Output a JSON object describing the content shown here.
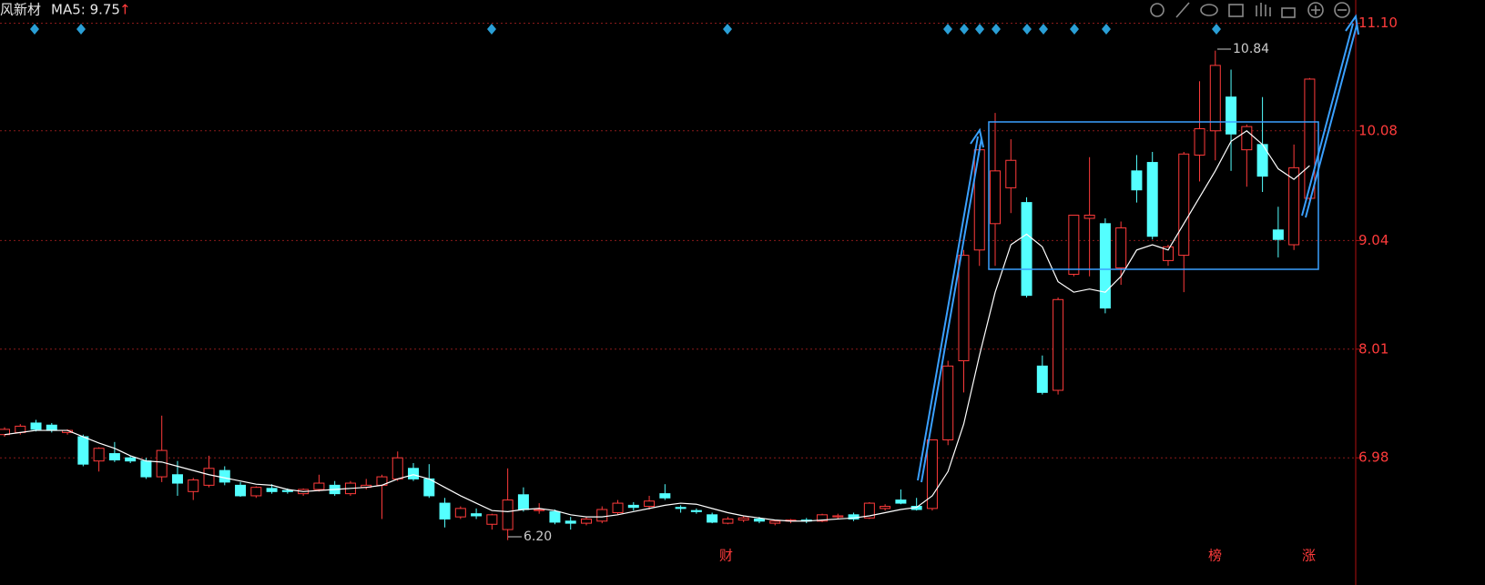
{
  "chart_data": {
    "type": "candlestick",
    "title": "风新材",
    "ma_label": "MA5: 9.75",
    "ma_arrow": "↑",
    "annotations": [
      "10.84",
      "6.20"
    ],
    "event_labels": [
      "财",
      "榜",
      "涨"
    ],
    "ylim": [
      5.99,
      11.32
    ],
    "yticks": [
      {
        "value": 11.1,
        "label": "11.10"
      },
      10.08,
      9.04,
      8.01,
      6.98
    ],
    "grid": true,
    "up_color": "#ff3b3b",
    "down_color": "#54ffff",
    "ma_color": "#ffffff",
    "open": [
      7.2,
      7.22,
      7.31,
      7.29,
      7.22,
      7.18,
      6.95,
      7.02,
      6.98,
      6.95,
      6.8,
      6.82,
      6.66,
      6.72,
      6.86,
      6.72,
      6.62,
      6.69,
      6.67,
      6.64,
      6.68,
      6.72,
      6.64,
      6.7,
      6.72,
      6.78,
      6.88,
      6.78,
      6.55,
      6.42,
      6.45,
      6.35,
      6.3,
      6.63,
      6.48,
      6.47,
      6.38,
      6.36,
      6.38,
      6.46,
      6.53,
      6.52,
      6.64,
      6.51,
      6.48,
      6.44,
      6.36,
      6.39,
      6.4,
      6.36,
      6.38,
      6.39,
      6.38,
      6.42,
      6.44,
      6.41,
      6.5,
      6.58,
      6.52,
      6.5,
      7.15,
      7.9,
      8.95,
      9.2,
      9.54,
      9.4,
      7.85,
      7.62,
      8.72,
      9.25,
      9.2,
      8.78,
      9.7,
      9.78,
      8.85,
      8.9,
      9.85,
      10.08,
      10.4,
      9.9,
      9.95,
      9.14,
      9.0,
      9.44
    ],
    "high": [
      7.27,
      7.3,
      7.34,
      7.31,
      7.25,
      7.2,
      7.08,
      7.13,
      7.0,
      6.98,
      7.38,
      6.95,
      6.79,
      7.0,
      6.9,
      6.75,
      6.71,
      6.73,
      6.69,
      6.69,
      6.82,
      6.76,
      6.76,
      6.78,
      6.82,
      7.04,
      6.93,
      6.92,
      6.6,
      6.52,
      6.5,
      6.45,
      6.88,
      6.7,
      6.55,
      6.49,
      6.42,
      6.42,
      6.52,
      6.58,
      6.56,
      6.62,
      6.73,
      6.53,
      6.5,
      6.46,
      6.42,
      6.43,
      6.42,
      6.39,
      6.4,
      6.41,
      6.45,
      6.45,
      6.46,
      6.56,
      6.54,
      6.68,
      6.6,
      7.15,
      7.9,
      8.95,
      9.95,
      10.25,
      10.0,
      9.45,
      7.95,
      8.5,
      9.28,
      9.83,
      9.25,
      9.22,
      9.85,
      9.88,
      9.0,
      9.88,
      10.55,
      10.84,
      10.66,
      10.14,
      10.4,
      9.36,
      9.95,
      10.58
    ],
    "low": [
      7.18,
      7.2,
      7.23,
      7.22,
      7.2,
      6.9,
      6.85,
      6.94,
      6.93,
      6.78,
      6.75,
      6.62,
      6.58,
      6.7,
      6.72,
      6.61,
      6.6,
      6.64,
      6.64,
      6.62,
      6.66,
      6.62,
      6.62,
      6.68,
      6.4,
      6.76,
      6.76,
      6.6,
      6.32,
      6.4,
      6.4,
      6.3,
      6.2,
      6.47,
      6.45,
      6.35,
      6.3,
      6.34,
      6.36,
      6.44,
      6.48,
      6.49,
      6.58,
      6.46,
      6.45,
      6.36,
      6.35,
      6.37,
      6.36,
      6.34,
      6.36,
      6.36,
      6.37,
      6.4,
      6.38,
      6.4,
      6.48,
      6.54,
      6.48,
      6.48,
      7.1,
      7.6,
      8.8,
      8.8,
      9.3,
      8.5,
      7.58,
      7.58,
      8.7,
      8.7,
      8.35,
      8.62,
      9.4,
      9.05,
      8.8,
      8.55,
      9.6,
      9.8,
      9.7,
      9.55,
      9.5,
      8.88,
      8.95,
      9.4
    ],
    "close": [
      7.25,
      7.28,
      7.25,
      7.24,
      7.24,
      6.92,
      7.07,
      6.96,
      6.95,
      6.8,
      7.05,
      6.74,
      6.77,
      6.88,
      6.75,
      6.62,
      6.7,
      6.66,
      6.66,
      6.68,
      6.74,
      6.64,
      6.74,
      6.72,
      6.8,
      6.98,
      6.78,
      6.62,
      6.4,
      6.5,
      6.43,
      6.44,
      6.58,
      6.49,
      6.49,
      6.37,
      6.36,
      6.4,
      6.49,
      6.55,
      6.51,
      6.57,
      6.6,
      6.5,
      6.47,
      6.37,
      6.4,
      6.41,
      6.38,
      6.38,
      6.39,
      6.38,
      6.44,
      6.43,
      6.4,
      6.55,
      6.52,
      6.55,
      6.49,
      7.15,
      7.85,
      8.9,
      9.9,
      9.7,
      9.8,
      8.52,
      7.6,
      8.48,
      9.28,
      9.28,
      8.4,
      9.16,
      9.52,
      9.08,
      8.98,
      9.86,
      10.1,
      10.7,
      10.05,
      10.12,
      9.65,
      9.05,
      9.73,
      10.57
    ],
    "ma5": [
      7.2,
      7.22,
      7.24,
      7.24,
      7.24,
      7.18,
      7.12,
      7.07,
      7.0,
      6.95,
      6.94,
      6.9,
      6.86,
      6.82,
      6.79,
      6.76,
      6.73,
      6.72,
      6.68,
      6.66,
      6.67,
      6.68,
      6.69,
      6.7,
      6.72,
      6.78,
      6.82,
      6.78,
      6.7,
      6.62,
      6.55,
      6.48,
      6.47,
      6.49,
      6.5,
      6.48,
      6.44,
      6.42,
      6.42,
      6.44,
      6.47,
      6.5,
      6.53,
      6.55,
      6.54,
      6.5,
      6.46,
      6.43,
      6.41,
      6.39,
      6.38,
      6.38,
      6.39,
      6.4,
      6.41,
      6.43,
      6.46,
      6.49,
      6.51,
      6.62,
      6.85,
      7.3,
      7.95,
      8.55,
      9.0,
      9.1,
      8.98,
      8.65,
      8.55,
      8.58,
      8.55,
      8.7,
      8.95,
      9.0,
      8.95,
      9.2,
      9.45,
      9.7,
      9.98,
      10.08,
      9.95,
      9.72,
      9.62,
      9.75
    ]
  }
}
